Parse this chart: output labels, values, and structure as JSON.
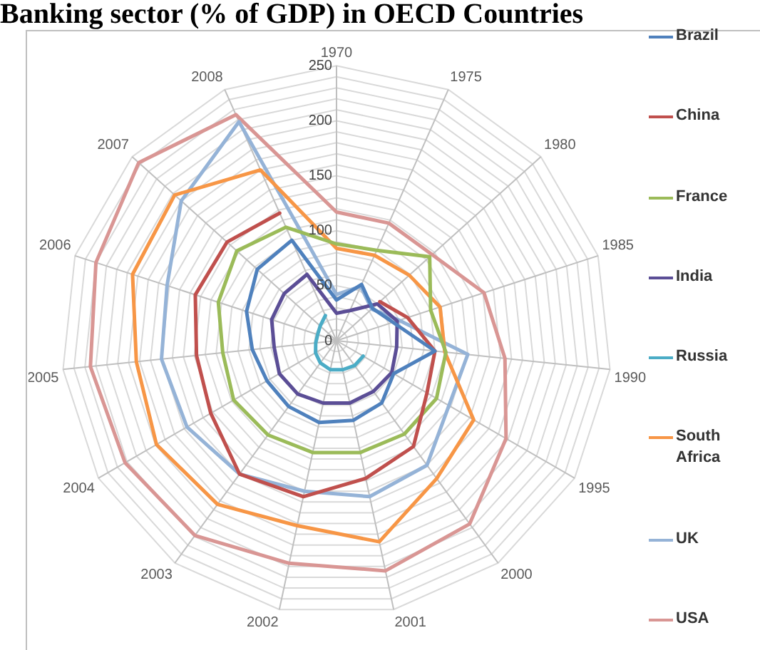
{
  "chart_data": {
    "type": "radar",
    "title": "Banking sector (% of GDP) in OECD Countries",
    "categories": [
      "1970",
      "1975",
      "1980",
      "1985",
      "1990",
      "1995",
      "2000",
      "2001",
      "2002",
      "2003",
      "2004",
      "2005",
      "2006",
      "2007",
      "2008"
    ],
    "ylim": [
      0,
      250
    ],
    "yticks": [
      0,
      50,
      100,
      150,
      200,
      250
    ],
    "grid": true,
    "legend": "right",
    "series": [
      {
        "name": "Brazil",
        "color": "#4f81bd",
        "values": [
          37,
          56,
          44,
          54,
          90,
          60,
          70,
          74,
          76,
          74,
          73,
          77,
          86,
          97,
          100
        ]
      },
      {
        "name": "China",
        "color": "#c0504d",
        "values": [
          null,
          null,
          53,
          68,
          90,
          95,
          119,
          128,
          145,
          150,
          132,
          128,
          135,
          134,
          127
        ]
      },
      {
        "name": "France",
        "color": "#9bbb59",
        "values": [
          88,
          90,
          114,
          90,
          100,
          105,
          105,
          104,
          104,
          106,
          108,
          104,
          113,
          122,
          113
        ]
      },
      {
        "name": "India",
        "color": "#5b4e96",
        "values": [
          25,
          30,
          50,
          58,
          55,
          58,
          57,
          58,
          58,
          60,
          60,
          57,
          62,
          64,
          66
        ]
      },
      {
        "name": "Russia",
        "color": "#4bacc6",
        "values": [
          null,
          null,
          null,
          null,
          null,
          28,
          28,
          27,
          27,
          25,
          22,
          19,
          18,
          20,
          25
        ]
      },
      {
        "name": "South Africa",
        "color": "#f79646",
        "values": [
          84,
          85,
          89,
          99,
          99,
          144,
          155,
          187,
          172,
          184,
          189,
          183,
          195,
          198,
          170
        ]
      },
      {
        "name": "UK",
        "color": "#95b3d7",
        "values": [
          42,
          54,
          43,
          60,
          120,
          118,
          140,
          145,
          140,
          150,
          157,
          160,
          162,
          190,
          218
        ]
      },
      {
        "name": "USA",
        "color": "#d99694",
        "values": [
          117,
          117,
          117,
          141,
          154,
          178,
          206,
          214,
          207,
          219,
          222,
          225,
          230,
          242,
          225
        ]
      }
    ]
  }
}
